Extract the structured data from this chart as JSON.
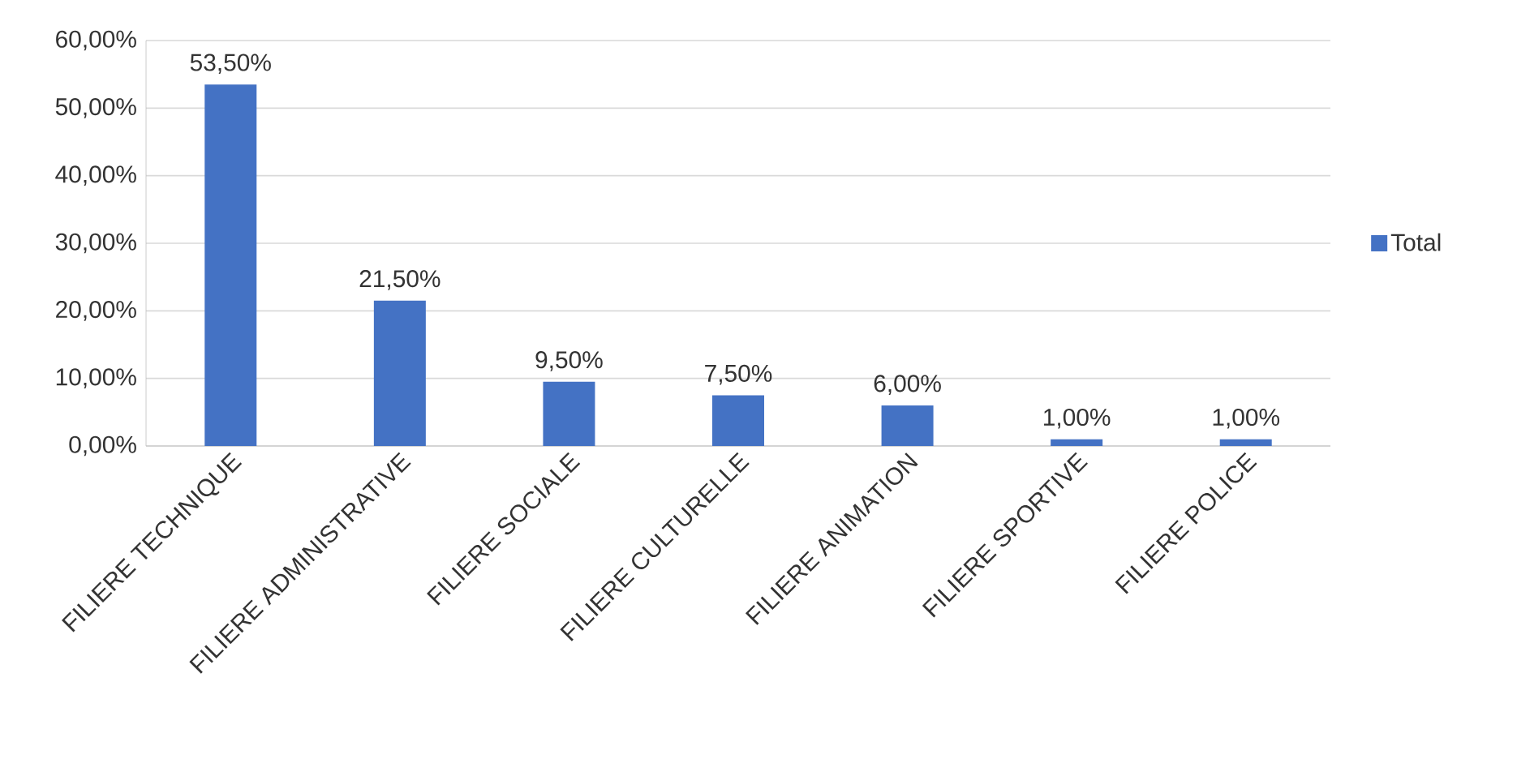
{
  "chart_data": {
    "type": "bar",
    "categories": [
      "FILIERE TECHNIQUE",
      "FILIERE ADMINISTRATIVE",
      "FILIERE SOCIALE",
      "FILIERE CULTURELLE",
      "FILIERE ANIMATION",
      "FILIERE SPORTIVE",
      "FILIERE POLICE"
    ],
    "series": [
      {
        "name": "Total",
        "color": "#4472c4",
        "values": [
          53.5,
          21.5,
          9.5,
          7.5,
          6,
          1,
          1
        ],
        "value_labels": [
          "53,50%",
          "21,50%",
          "9,50%",
          "7,50%",
          "6,00%",
          "1,00%",
          "1,00%"
        ]
      }
    ],
    "ylim": [
      0,
      60
    ],
    "yticks": [
      {
        "value": 0,
        "label": "0,00%"
      },
      {
        "value": 10,
        "label": "10,00%"
      },
      {
        "value": 20,
        "label": "20,00%"
      },
      {
        "value": 30,
        "label": "30,00%"
      },
      {
        "value": 40,
        "label": "40,00%"
      },
      {
        "value": 50,
        "label": "50,00%"
      },
      {
        "value": 60,
        "label": "60,00%"
      }
    ],
    "grid": "y",
    "legend": "right"
  }
}
